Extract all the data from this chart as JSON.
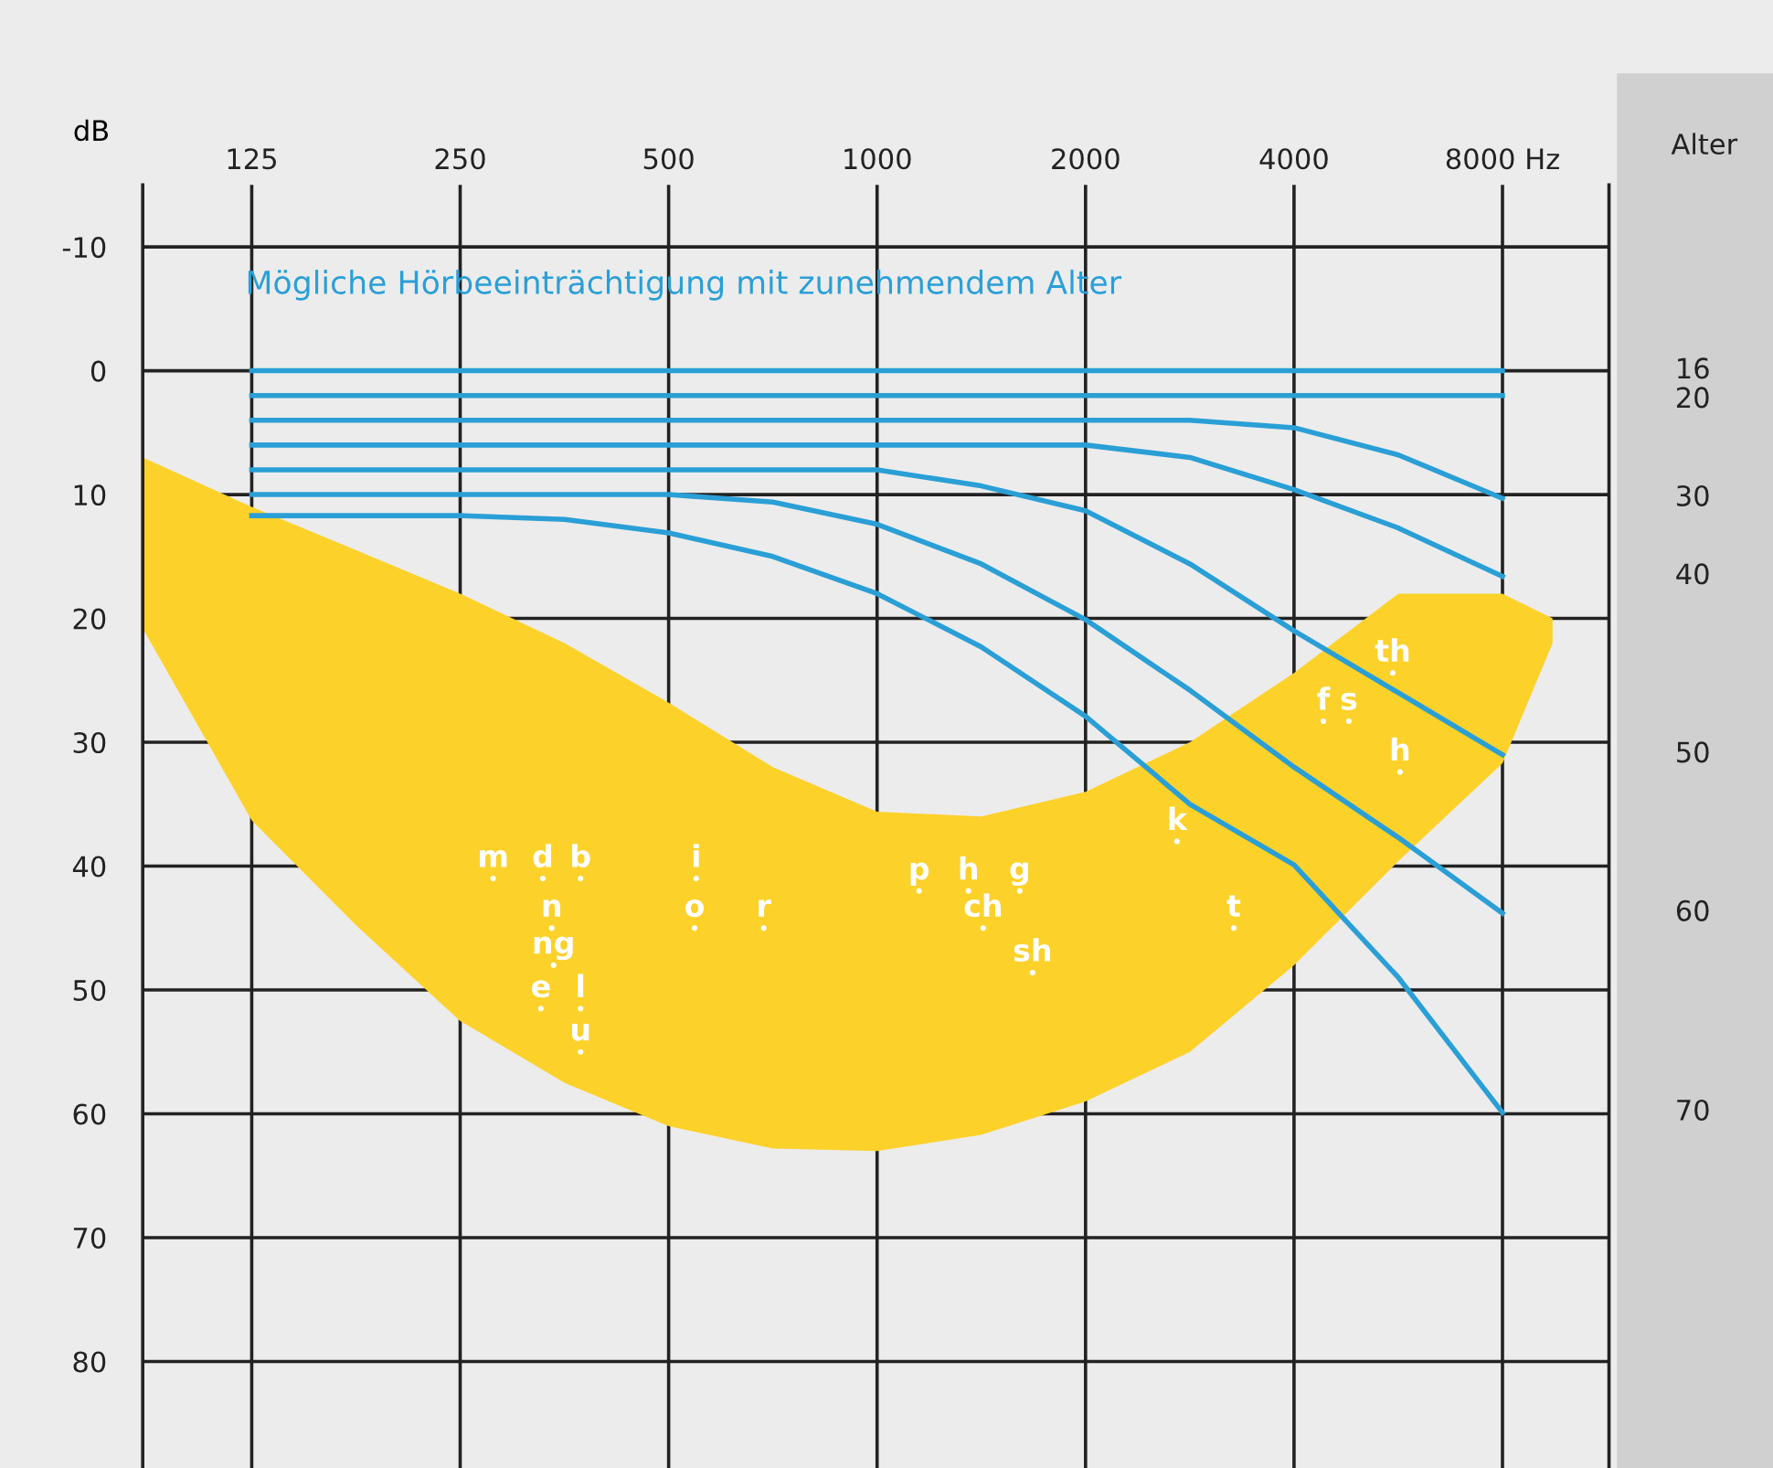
{
  "chart_data": {
    "type": "line",
    "xlabel": null,
    "ylabel": "dB",
    "y2label": "Alter",
    "log": "x",
    "grid": true,
    "legend": false,
    "marker": "none",
    "line_style": "solid",
    "xlim": [
      87,
      11400
    ],
    "ylim": [
      88.6,
      -15
    ],
    "xticks": [
      125,
      250,
      500,
      1000,
      2000,
      4000,
      {
        "value": 8000,
        "label": "8000 Hz"
      }
    ],
    "yticks": [
      -10,
      0,
      10,
      20,
      30,
      40,
      50,
      60,
      70,
      80
    ],
    "series": [
      {
        "type": "scatter",
        "marker": "circle",
        "color": "#ffffff",
        "x": [
          279,
          329,
          373,
          339,
          341,
          327,
          373,
          373,
          548,
          545,
          686,
          1150,
          1355,
          1607,
          1423,
          1677,
          2711,
          3274,
          4410,
          4800,
          5555,
          5690
        ],
        "values": [
          41,
          41,
          41,
          45,
          48,
          51.5,
          51.5,
          55,
          41,
          45,
          45,
          42,
          42,
          42,
          45,
          48.6,
          38,
          45,
          28.3,
          28.3,
          24.4,
          32.4
        ],
        "value_labels": [
          "m",
          "d",
          "b",
          "n",
          "ng",
          "e",
          "l",
          "u",
          "i",
          "o",
          "r",
          "p",
          "h",
          "g",
          "ch",
          "sh",
          "k",
          "t",
          "f",
          "s",
          "th",
          "h"
        ]
      },
      {
        "name": "16",
        "color": "#2a9fd6",
        "x": [
          125,
          8000
        ],
        "values": [
          0,
          0
        ]
      },
      {
        "name": "20",
        "color": "#2a9fd6",
        "x": [
          125,
          8000
        ],
        "values": [
          2,
          2
        ]
      },
      {
        "name": "30",
        "color": "#2a9fd6",
        "x": [
          125,
          2830,
          4000,
          5660,
          8000
        ],
        "values": [
          4,
          4,
          4.6,
          6.8,
          10.3
        ]
      },
      {
        "name": "40",
        "color": "#2a9fd6",
        "x": [
          125,
          2000,
          2830,
          4000,
          5660,
          8000
        ],
        "values": [
          6,
          6,
          7,
          9.6,
          12.7,
          16.6
        ]
      },
      {
        "name": "50",
        "color": "#2a9fd6",
        "x": [
          125,
          1000,
          1414,
          2000,
          2830,
          4000,
          5660,
          8000
        ],
        "values": [
          8,
          8,
          9.3,
          11.3,
          15.6,
          21,
          26,
          31
        ]
      },
      {
        "name": "60",
        "color": "#2a9fd6",
        "x": [
          125,
          500,
          707,
          1000,
          1414,
          2000,
          2830,
          4000,
          5660,
          8000
        ],
        "values": [
          10,
          10,
          10.6,
          12.4,
          15.6,
          20.1,
          25.8,
          32,
          37.7,
          43.8
        ]
      },
      {
        "name": "70",
        "color": "#2a9fd6",
        "x": [
          125,
          250,
          354,
          500,
          707,
          1000,
          1414,
          2000,
          2830,
          4000,
          5660,
          8000
        ],
        "values": [
          11.7,
          11.7,
          12,
          13.1,
          15,
          18,
          22.3,
          27.9,
          35,
          39.9,
          49,
          59.9
        ]
      }
    ],
    "annotations": [
      "Mögliche Hörbeeinträchtigung mit zunehmendem Alter"
    ]
  }
}
